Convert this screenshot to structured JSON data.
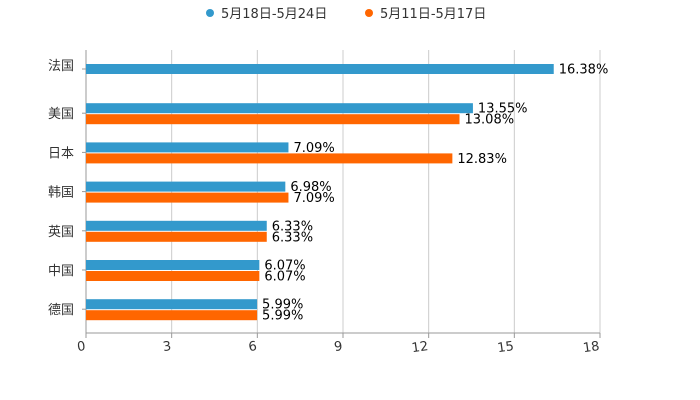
{
  "chart_data": {
    "type": "bar",
    "orientation": "horizontal",
    "title": "",
    "xlabel": "",
    "ylabel": "",
    "xlim": [
      0,
      18
    ],
    "xticks": [
      0,
      3,
      6,
      9,
      12,
      15,
      18
    ],
    "grid": true,
    "legend_position": "top-center",
    "categories": [
      "法国",
      "美国",
      "日本",
      "韩国",
      "英国",
      "中国",
      "德国"
    ],
    "series": [
      {
        "name": "5月18日-5月24日",
        "color": "#3399cc",
        "values": [
          16.38,
          13.55,
          7.09,
          6.98,
          6.33,
          6.07,
          5.99
        ],
        "labels": [
          "16.38%",
          "13.55%",
          "7.09%",
          "6.98%",
          "6.33%",
          "6.07%",
          "5.99%"
        ]
      },
      {
        "name": "5月11日-5月17日",
        "color": "#ff6600",
        "values": [
          null,
          13.08,
          12.83,
          7.09,
          6.33,
          6.07,
          5.99
        ],
        "labels": [
          null,
          "13.08%",
          "12.83%",
          "7.09%",
          "6.33%",
          "6.07%",
          "5.99%"
        ]
      }
    ]
  }
}
